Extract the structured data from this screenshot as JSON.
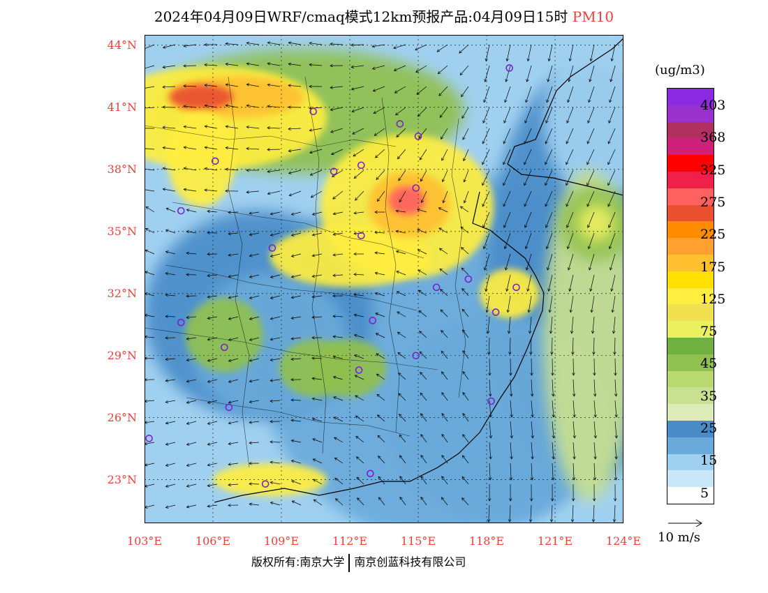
{
  "title": {
    "prefix": "2024年04月09日WRF/cmaq模式12km预报产品:04月09日15时",
    "pollutant": "PM10"
  },
  "axes": {
    "lat_labels": [
      "44°N",
      "41°N",
      "38°N",
      "35°N",
      "32°N",
      "29°N",
      "26°N",
      "23°N"
    ],
    "lat_values": [
      44,
      41,
      38,
      35,
      32,
      29,
      26,
      23
    ],
    "lon_labels": [
      "103°E",
      "106°E",
      "109°E",
      "112°E",
      "115°E",
      "118°E",
      "121°E",
      "124°E"
    ],
    "lon_values": [
      103,
      106,
      109,
      112,
      115,
      118,
      121,
      124
    ],
    "lat_range": [
      20.9,
      44.5
    ],
    "lon_range": [
      103,
      124
    ]
  },
  "legend": {
    "unit": "(ug/m3)",
    "colors": [
      "#8a2be2",
      "#9b30d0",
      "#b03060",
      "#d0207a",
      "#ff0000",
      "#f0204a",
      "#ff6060",
      "#e85030",
      "#ff8c00",
      "#ffa030",
      "#ffc030",
      "#ffe000",
      "#ffee40",
      "#f0e050",
      "#eaf060",
      "#70b040",
      "#90c050",
      "#b8d870",
      "#c8e090",
      "#dcebb8",
      "#4a8cc8",
      "#6aaada",
      "#a0d0f0",
      "#c8e8f8",
      "#ffffff"
    ],
    "labels": [
      "403",
      "368",
      "325",
      "275",
      "225",
      "175",
      "125",
      "75",
      "45",
      "35",
      "25",
      "15",
      "5"
    ]
  },
  "wind_key": {
    "label": "10 m/s"
  },
  "copyright": {
    "left": "版权所有:南京大学",
    "right": "南京创蓝科技有限公司"
  },
  "stations": [
    {
      "lon": 119.0,
      "lat": 42.9
    },
    {
      "lon": 110.4,
      "lat": 40.8
    },
    {
      "lon": 114.2,
      "lat": 40.2
    },
    {
      "lon": 115.0,
      "lat": 39.6
    },
    {
      "lon": 106.1,
      "lat": 38.4
    },
    {
      "lon": 112.5,
      "lat": 38.2
    },
    {
      "lon": 111.3,
      "lat": 37.9
    },
    {
      "lon": 114.9,
      "lat": 37.1
    },
    {
      "lon": 104.6,
      "lat": 36.0
    },
    {
      "lon": 112.5,
      "lat": 34.8
    },
    {
      "lon": 108.6,
      "lat": 34.2
    },
    {
      "lon": 117.2,
      "lat": 32.7
    },
    {
      "lon": 115.8,
      "lat": 32.3
    },
    {
      "lon": 119.3,
      "lat": 32.3
    },
    {
      "lon": 118.4,
      "lat": 31.1
    },
    {
      "lon": 104.6,
      "lat": 30.6
    },
    {
      "lon": 113.0,
      "lat": 30.7
    },
    {
      "lon": 106.5,
      "lat": 29.4
    },
    {
      "lon": 114.9,
      "lat": 29.0
    },
    {
      "lon": 112.4,
      "lat": 28.3
    },
    {
      "lon": 118.2,
      "lat": 26.8
    },
    {
      "lon": 106.7,
      "lat": 26.5
    },
    {
      "lon": 103.2,
      "lat": 25.0
    },
    {
      "lon": 112.9,
      "lat": 23.3
    },
    {
      "lon": 108.3,
      "lat": 22.8
    }
  ],
  "fields": [
    {
      "lon": 116,
      "lat": 29,
      "rx": 8,
      "ry": 9,
      "color": "#6aaada"
    },
    {
      "lon": 122.5,
      "lat": 33,
      "rx": 4.5,
      "ry": 10,
      "color": "#4a8cc8"
    },
    {
      "lon": 108,
      "lat": 31,
      "rx": 5,
      "ry": 5,
      "color": "#4a8cc8"
    },
    {
      "lon": 108.5,
      "lat": 29.5,
      "rx": 3.5,
      "ry": 3.5,
      "color": "#6aaada"
    },
    {
      "lon": 123,
      "lat": 40.5,
      "rx": 2.5,
      "ry": 4,
      "color": "#a0d0f0"
    },
    {
      "lon": 118.5,
      "lat": 26,
      "rx": 5,
      "ry": 5,
      "color": "#6aaada"
    },
    {
      "lon": 122.5,
      "lat": 30,
      "rx": 2,
      "ry": 8,
      "color": "#c8e090"
    },
    {
      "lon": 122.8,
      "lat": 35.4,
      "rx": 1.6,
      "ry": 1.8,
      "color": "#90c050"
    },
    {
      "lon": 122.8,
      "lat": 35.4,
      "rx": 0.8,
      "ry": 0.9,
      "color": "#eaf060"
    },
    {
      "lon": 110,
      "lat": 40.8,
      "rx": 7,
      "ry": 3,
      "color": "#90c050"
    },
    {
      "lon": 106,
      "lat": 40.5,
      "rx": 5,
      "ry": 2.5,
      "color": "#ffee40"
    },
    {
      "lon": 107,
      "lat": 41.5,
      "rx": 3,
      "ry": 1,
      "color": "#ffc030"
    },
    {
      "lon": 105.5,
      "lat": 41.5,
      "rx": 1.4,
      "ry": 0.6,
      "color": "#e85030"
    },
    {
      "lon": 105.5,
      "lat": 38.5,
      "rx": 1.5,
      "ry": 2.3,
      "color": "#ffee40"
    },
    {
      "lon": 114.5,
      "lat": 36.2,
      "rx": 3.8,
      "ry": 3.5,
      "color": "#ffee40"
    },
    {
      "lon": 112,
      "lat": 33.8,
      "rx": 3.5,
      "ry": 1.5,
      "color": "#ffee40"
    },
    {
      "lon": 114.6,
      "lat": 36.3,
      "rx": 1.8,
      "ry": 1.6,
      "color": "#ffc030"
    },
    {
      "lon": 114.5,
      "lat": 36.5,
      "rx": 0.8,
      "ry": 0.7,
      "color": "#ff6060"
    },
    {
      "lon": 119,
      "lat": 32,
      "rx": 1.3,
      "ry": 1.2,
      "color": "#ffee40"
    },
    {
      "lon": 112,
      "lat": 28.4,
      "rx": 1.6,
      "ry": 1.4,
      "color": "#90c050"
    },
    {
      "lon": 110.5,
      "lat": 28.4,
      "rx": 1.6,
      "ry": 1.4,
      "color": "#90c050"
    },
    {
      "lon": 106.5,
      "lat": 30,
      "rx": 1.7,
      "ry": 1.8,
      "color": "#90c050"
    },
    {
      "lon": 108.5,
      "lat": 23,
      "rx": 2.5,
      "ry": 0.8,
      "color": "#ffee40"
    }
  ]
}
